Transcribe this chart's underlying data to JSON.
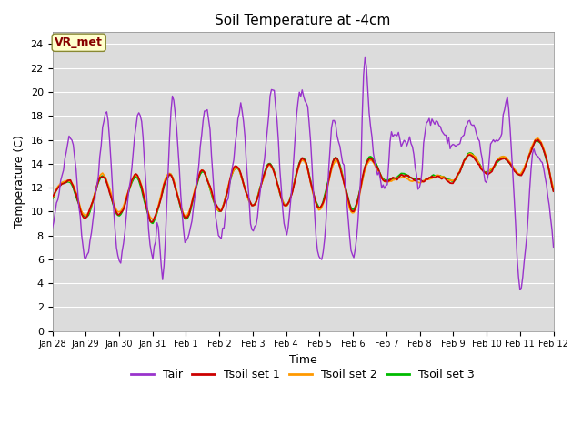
{
  "title": "Soil Temperature at -4cm",
  "xlabel": "Time",
  "ylabel": "Temperature (C)",
  "ylim": [
    0,
    25
  ],
  "yticks": [
    0,
    2,
    4,
    6,
    8,
    10,
    12,
    14,
    16,
    18,
    20,
    22,
    24
  ],
  "xtick_labels": [
    "Jan 28",
    "Jan 29",
    "Jan 30",
    "Jan 31",
    "Feb 1",
    "Feb 2",
    "Feb 3",
    "Feb 4",
    "Feb 5",
    "Feb 6",
    "Feb 7",
    "Feb 8",
    "Feb 9",
    "Feb 10",
    "Feb 11",
    "Feb 12"
  ],
  "colors": {
    "Tair": "#9933CC",
    "Tsoil1": "#CC0000",
    "Tsoil2": "#FF9900",
    "Tsoil3": "#00BB00"
  },
  "legend_label": "VR_met",
  "annotation_color": "#880000",
  "annotation_bg": "#FFFFCC"
}
